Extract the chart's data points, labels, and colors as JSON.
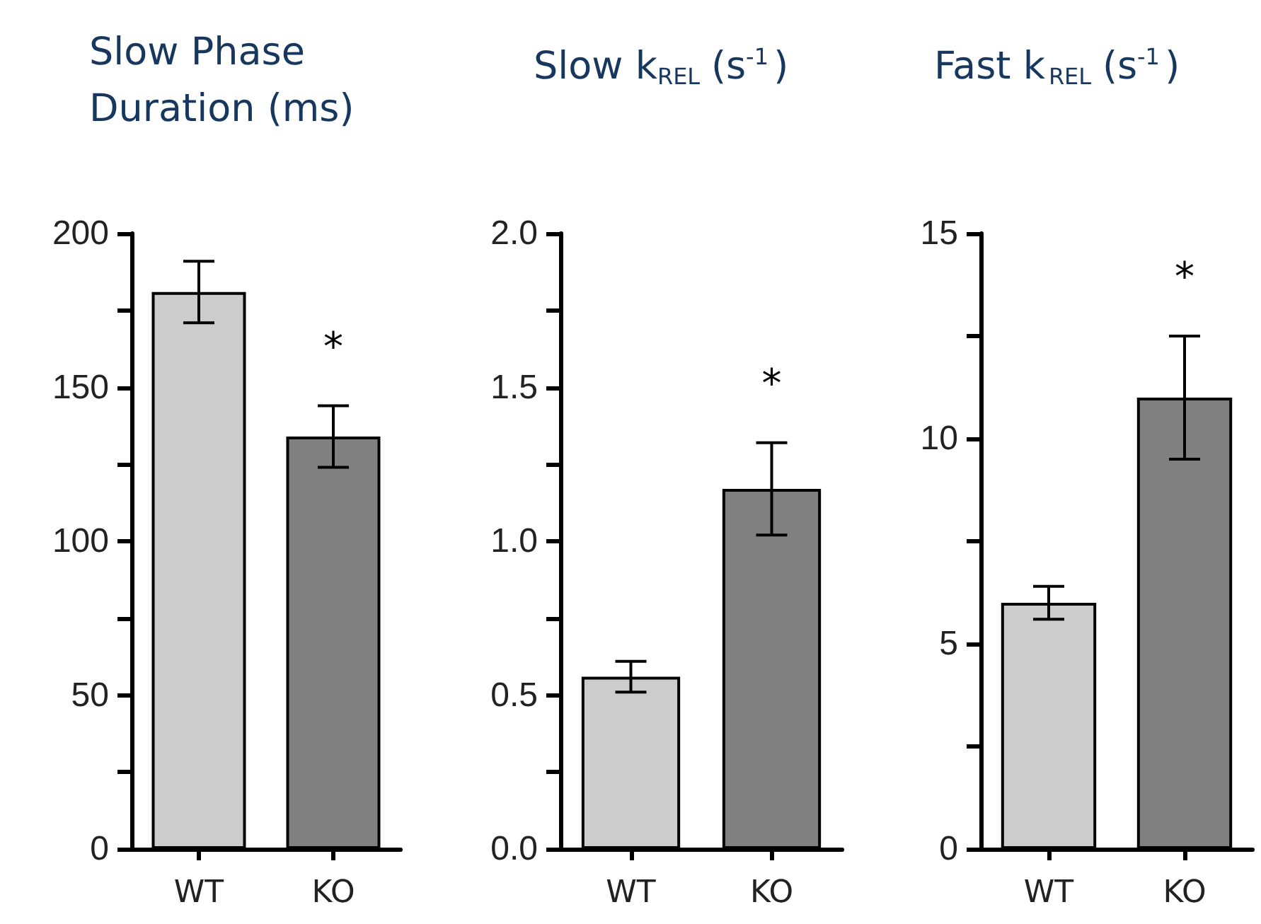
{
  "chart_data": [
    {
      "type": "bar",
      "title": "Slow Phase Duration (ms)",
      "categories": [
        "WT",
        "KO"
      ],
      "values": [
        181,
        134
      ],
      "errors": [
        10,
        10
      ],
      "colors": [
        "#cccccc",
        "#808080"
      ],
      "ylim": [
        0,
        200
      ],
      "yticks": [
        0,
        {
          "value": 25,
          "label": null
        },
        50,
        {
          "value": 75,
          "label": null
        },
        100,
        {
          "value": 125,
          "label": null
        },
        150,
        {
          "value": 175,
          "label": null
        },
        200
      ],
      "grid": false,
      "annotations": [
        "*"
      ]
    },
    {
      "type": "bar",
      "title": "Slow k$_{REL}$ (s$^{-1}$)",
      "categories": [
        "WT",
        "KO"
      ],
      "values": [
        0.56,
        1.17
      ],
      "errors": [
        0.05,
        0.15
      ],
      "colors": [
        "#cccccc",
        "#808080"
      ],
      "ylim": [
        0,
        2
      ],
      "yticks": [
        {
          "value": 0,
          "label": "0.0"
        },
        {
          "value": 0.25,
          "label": null
        },
        {
          "value": 0.5,
          "label": "0.5"
        },
        {
          "value": 0.75,
          "label": null
        },
        {
          "value": 1,
          "label": "1.0"
        },
        {
          "value": 1.25,
          "label": null
        },
        {
          "value": 1.5,
          "label": "1.5"
        },
        {
          "value": 1.75,
          "label": null
        },
        {
          "value": 2,
          "label": "2.0"
        }
      ],
      "grid": false,
      "annotations": [
        "*"
      ]
    },
    {
      "type": "bar",
      "title": "Fast k$_{REL}$ (s$^{-1}$)",
      "categories": [
        "WT",
        "KO"
      ],
      "values": [
        6.0,
        11.0
      ],
      "errors": [
        0.4,
        1.5
      ],
      "colors": [
        "#cccccc",
        "#808080"
      ],
      "ylim": [
        0,
        15
      ],
      "yticks": [
        0,
        {
          "value": 2.5,
          "label": null
        },
        5,
        {
          "value": 7.5,
          "label": null
        },
        10,
        {
          "value": 12.5,
          "label": null
        },
        15
      ],
      "grid": false,
      "annotations": [
        "*"
      ]
    }
  ]
}
